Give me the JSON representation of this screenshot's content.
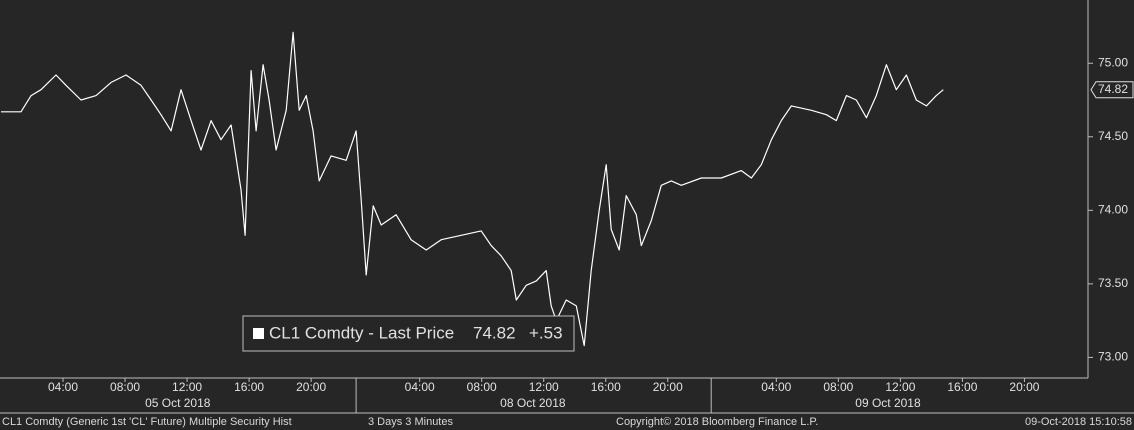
{
  "chart_data": {
    "type": "line",
    "series": [
      {
        "name": "CL1 Comdty - Last Price",
        "color": "#ffffff",
        "x": [
          0,
          1.29,
          1.94,
          2.58,
          3.55,
          4.19,
          5.16,
          6.13,
          7.1,
          8.06,
          9.03,
          9.68,
          10.32,
          10.97,
          11.61,
          12.26,
          12.9,
          13.55,
          14.19,
          14.84,
          15.48,
          15.74,
          16.13,
          16.45,
          16.9,
          17.29,
          17.74,
          18.39,
          18.84,
          19.23,
          19.68,
          20.13,
          20.52,
          21.29,
          22.26,
          22.9,
          23.23,
          23.55,
          24.0,
          24.52,
          25.48,
          26.45,
          27.42,
          28.39,
          29.68,
          30.97,
          31.61,
          32.26,
          32.9,
          33.23,
          33.87,
          34.52,
          35.16,
          35.48,
          35.81,
          36.45,
          37.1,
          37.61,
          38.06,
          38.58,
          39.03,
          39.35,
          39.87,
          40.32,
          40.97,
          41.29,
          41.94,
          42.58,
          43.23,
          43.87,
          45.16,
          46.45,
          47.74,
          48.39,
          49.03,
          49.68,
          50.32,
          50.97,
          52.26,
          53.23,
          53.87,
          54.52,
          55.16,
          55.81,
          56.45,
          57.1,
          57.74,
          58.39,
          59.03,
          59.68,
          60.32,
          60.77
        ],
        "values": [
          74.67,
          74.67,
          74.78,
          74.82,
          74.92,
          74.85,
          74.75,
          74.78,
          74.87,
          74.92,
          74.85,
          74.75,
          74.65,
          74.54,
          74.82,
          74.61,
          74.41,
          74.61,
          74.48,
          74.58,
          74.14,
          73.83,
          74.95,
          74.54,
          74.99,
          74.75,
          74.41,
          74.68,
          75.21,
          74.68,
          74.78,
          74.54,
          74.2,
          74.37,
          74.34,
          74.54,
          74.07,
          73.56,
          74.03,
          73.9,
          73.97,
          73.8,
          73.73,
          73.8,
          73.83,
          73.86,
          73.76,
          73.69,
          73.59,
          73.39,
          73.49,
          73.52,
          73.59,
          73.35,
          73.25,
          73.39,
          73.35,
          73.08,
          73.59,
          74.0,
          74.31,
          73.87,
          73.73,
          74.1,
          73.97,
          73.76,
          73.93,
          74.17,
          74.2,
          74.17,
          74.22,
          74.22,
          74.27,
          74.22,
          74.31,
          74.48,
          74.61,
          74.71,
          74.68,
          74.65,
          74.61,
          74.78,
          74.75,
          74.63,
          74.78,
          74.99,
          74.82,
          74.92,
          74.75,
          74.71,
          74.78,
          74.82
        ]
      }
    ],
    "last_price": 74.82,
    "change_label": "+.53",
    "xlim": [
      0,
      70.1
    ],
    "ylim": [
      72.86,
      75.43
    ],
    "xticks": [
      {
        "value": 4,
        "label": "04:00"
      },
      {
        "value": 8,
        "label": "08:00"
      },
      {
        "value": 12,
        "label": "12:00"
      },
      {
        "value": 16,
        "label": "16:00"
      },
      {
        "value": 20,
        "label": "20:00"
      },
      {
        "value": 27,
        "label": "04:00"
      },
      {
        "value": 31,
        "label": "08:00"
      },
      {
        "value": 35,
        "label": "12:00"
      },
      {
        "value": 39,
        "label": "16:00"
      },
      {
        "value": 43,
        "label": "20:00"
      },
      {
        "value": 50,
        "label": "04:00"
      },
      {
        "value": 54,
        "label": "08:00"
      },
      {
        "value": 58,
        "label": "12:00"
      },
      {
        "value": 62,
        "label": "16:00"
      },
      {
        "value": 66,
        "label": "20:00"
      }
    ],
    "date_labels": [
      {
        "value": 11.4,
        "label": "05 Oct 2018"
      },
      {
        "value": 34.3,
        "label": "08 Oct 2018"
      },
      {
        "value": 57.2,
        "label": "09 Oct 2018"
      }
    ],
    "day_breaks": [
      22.9,
      45.8
    ],
    "yticks": [
      {
        "value": 73,
        "label": "73.00"
      },
      {
        "value": 73.5,
        "label": "73.50"
      },
      {
        "value": 74,
        "label": "74.00"
      },
      {
        "value": 74.5,
        "label": "74.50"
      },
      {
        "value": 75,
        "label": "75.00"
      }
    ],
    "footer": {
      "security": "CL1 Comdty (Generic 1st 'CL' Future) Multiple Security Hist",
      "period": "3 Days 3 Minutes",
      "copyright": "Copyright© 2018 Bloomberg Finance L.P.",
      "timestamp": "09-Oct-2018 15:10:58"
    }
  }
}
